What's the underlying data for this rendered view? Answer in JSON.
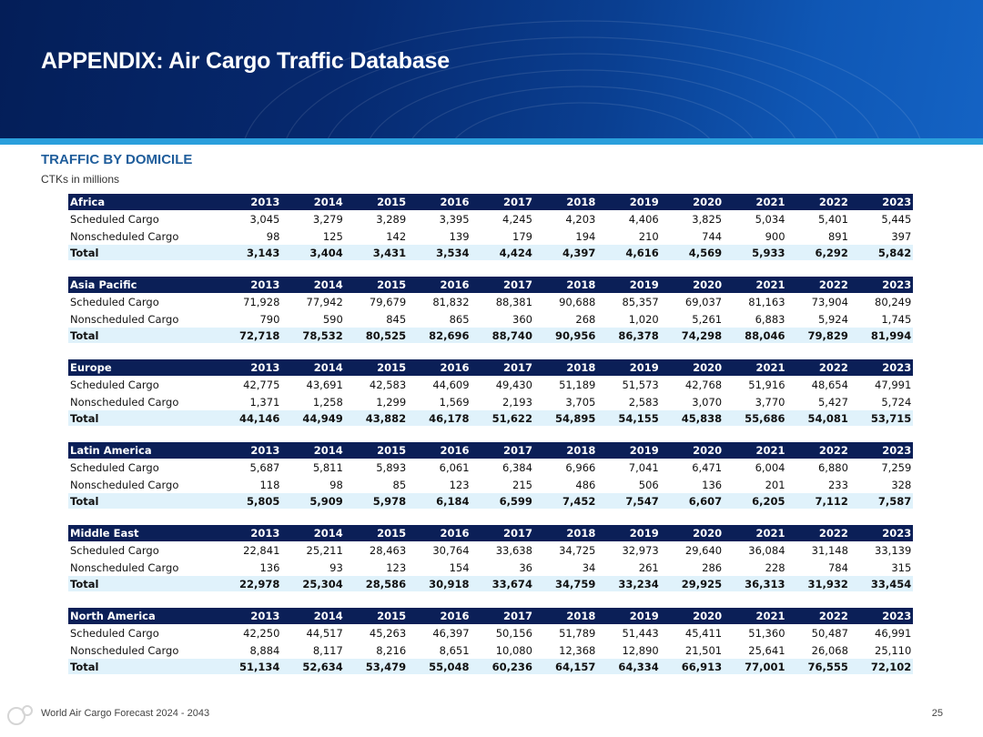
{
  "header": {
    "title": "APPENDIX: Air Cargo Traffic Database"
  },
  "section": {
    "title": "TRAFFIC BY DOMICILE",
    "subtitle": "CTKs in millions"
  },
  "years": [
    "2013",
    "2014",
    "2015",
    "2016",
    "2017",
    "2018",
    "2019",
    "2020",
    "2021",
    "2022",
    "2023"
  ],
  "regions": [
    {
      "name": "Africa",
      "rows": [
        {
          "label": "Scheduled Cargo",
          "values": [
            "3,045",
            "3,279",
            "3,289",
            "3,395",
            "4,245",
            "4,203",
            "4,406",
            "3,825",
            "5,034",
            "5,401",
            "5,445"
          ]
        },
        {
          "label": "Nonscheduled Cargo",
          "values": [
            "98",
            "125",
            "142",
            "139",
            "179",
            "194",
            "210",
            "744",
            "900",
            "891",
            "397"
          ]
        },
        {
          "label": "Total",
          "values": [
            "3,143",
            "3,404",
            "3,431",
            "3,534",
            "4,424",
            "4,397",
            "4,616",
            "4,569",
            "5,933",
            "6,292",
            "5,842"
          ]
        }
      ]
    },
    {
      "name": "Asia Pacific",
      "rows": [
        {
          "label": "Scheduled Cargo",
          "values": [
            "71,928",
            "77,942",
            "79,679",
            "81,832",
            "88,381",
            "90,688",
            "85,357",
            "69,037",
            "81,163",
            "73,904",
            "80,249"
          ]
        },
        {
          "label": "Nonscheduled Cargo",
          "values": [
            "790",
            "590",
            "845",
            "865",
            "360",
            "268",
            "1,020",
            "5,261",
            "6,883",
            "5,924",
            "1,745"
          ]
        },
        {
          "label": "Total",
          "values": [
            "72,718",
            "78,532",
            "80,525",
            "82,696",
            "88,740",
            "90,956",
            "86,378",
            "74,298",
            "88,046",
            "79,829",
            "81,994"
          ]
        }
      ]
    },
    {
      "name": "Europe",
      "rows": [
        {
          "label": "Scheduled Cargo",
          "values": [
            "42,775",
            "43,691",
            "42,583",
            "44,609",
            "49,430",
            "51,189",
            "51,573",
            "42,768",
            "51,916",
            "48,654",
            "47,991"
          ]
        },
        {
          "label": "Nonscheduled Cargo",
          "values": [
            "1,371",
            "1,258",
            "1,299",
            "1,569",
            "2,193",
            "3,705",
            "2,583",
            "3,070",
            "3,770",
            "5,427",
            "5,724"
          ]
        },
        {
          "label": "Total",
          "values": [
            "44,146",
            "44,949",
            "43,882",
            "46,178",
            "51,622",
            "54,895",
            "54,155",
            "45,838",
            "55,686",
            "54,081",
            "53,715"
          ]
        }
      ]
    },
    {
      "name": "Latin America",
      "rows": [
        {
          "label": "Scheduled Cargo",
          "values": [
            "5,687",
            "5,811",
            "5,893",
            "6,061",
            "6,384",
            "6,966",
            "7,041",
            "6,471",
            "6,004",
            "6,880",
            "7,259"
          ]
        },
        {
          "label": "Nonscheduled Cargo",
          "values": [
            "118",
            "98",
            "85",
            "123",
            "215",
            "486",
            "506",
            "136",
            "201",
            "233",
            "328"
          ]
        },
        {
          "label": "Total",
          "values": [
            "5,805",
            "5,909",
            "5,978",
            "6,184",
            "6,599",
            "7,452",
            "7,547",
            "6,607",
            "6,205",
            "7,112",
            "7,587"
          ]
        }
      ]
    },
    {
      "name": "Middle East",
      "rows": [
        {
          "label": "Scheduled Cargo",
          "values": [
            "22,841",
            "25,211",
            "28,463",
            "30,764",
            "33,638",
            "34,725",
            "32,973",
            "29,640",
            "36,084",
            "31,148",
            "33,139"
          ]
        },
        {
          "label": "Nonscheduled Cargo",
          "values": [
            "136",
            "93",
            "123",
            "154",
            "36",
            "34",
            "261",
            "286",
            "228",
            "784",
            "315"
          ]
        },
        {
          "label": "Total",
          "values": [
            "22,978",
            "25,304",
            "28,586",
            "30,918",
            "33,674",
            "34,759",
            "33,234",
            "29,925",
            "36,313",
            "31,932",
            "33,454"
          ]
        }
      ]
    },
    {
      "name": "North America",
      "rows": [
        {
          "label": "Scheduled Cargo",
          "values": [
            "42,250",
            "44,517",
            "45,263",
            "46,397",
            "50,156",
            "51,789",
            "51,443",
            "45,411",
            "51,360",
            "50,487",
            "46,991"
          ]
        },
        {
          "label": "Nonscheduled Cargo",
          "values": [
            "8,884",
            "8,117",
            "8,216",
            "8,651",
            "10,080",
            "12,368",
            "12,890",
            "21,501",
            "25,641",
            "26,068",
            "25,110"
          ]
        },
        {
          "label": "Total",
          "values": [
            "51,134",
            "52,634",
            "53,479",
            "55,048",
            "60,236",
            "64,157",
            "64,334",
            "66,913",
            "77,001",
            "76,555",
            "72,102"
          ]
        }
      ]
    }
  ],
  "footer": {
    "text": "World Air Cargo Forecast 2024 - 2043",
    "page_number": "25"
  },
  "colors": {
    "banner": "#06296f",
    "stripe": "#2a9fdc",
    "table_header": "#0b1f57",
    "total_row": "#e0f2fb",
    "section_title": "#1f5d9b"
  }
}
